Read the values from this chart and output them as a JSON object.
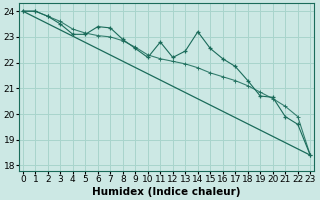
{
  "title": "",
  "xlabel": "Humidex (Indice chaleur)",
  "bg_color": "#cce8e4",
  "line_color": "#1a6b5a",
  "grid_color": "#a8d4cc",
  "x": [
    0,
    1,
    2,
    3,
    4,
    5,
    6,
    7,
    8,
    9,
    10,
    11,
    12,
    13,
    14,
    15,
    16,
    17,
    18,
    19,
    20,
    21,
    22,
    23
  ],
  "y_jagged": [
    24.0,
    24.0,
    23.8,
    23.5,
    23.1,
    23.1,
    23.4,
    23.35,
    22.9,
    22.55,
    22.2,
    22.8,
    22.2,
    22.45,
    23.2,
    22.55,
    22.15,
    21.85,
    21.3,
    20.7,
    20.65,
    19.9,
    19.6,
    18.4
  ],
  "y_linear": [
    24.0,
    24.0,
    23.8,
    23.6,
    23.3,
    23.15,
    23.05,
    23.0,
    22.85,
    22.6,
    22.3,
    22.15,
    22.05,
    21.95,
    21.8,
    21.6,
    21.45,
    21.3,
    21.1,
    20.85,
    20.6,
    20.3,
    19.9,
    18.4
  ],
  "ylim": [
    17.8,
    24.3
  ],
  "xlim": [
    -0.3,
    23.3
  ],
  "yticks": [
    18,
    19,
    20,
    21,
    22,
    23,
    24
  ],
  "xticks": [
    0,
    1,
    2,
    3,
    4,
    5,
    6,
    7,
    8,
    9,
    10,
    11,
    12,
    13,
    14,
    15,
    16,
    17,
    18,
    19,
    20,
    21,
    22,
    23
  ],
  "tick_fontsize": 6.5,
  "label_fontsize": 7.5
}
